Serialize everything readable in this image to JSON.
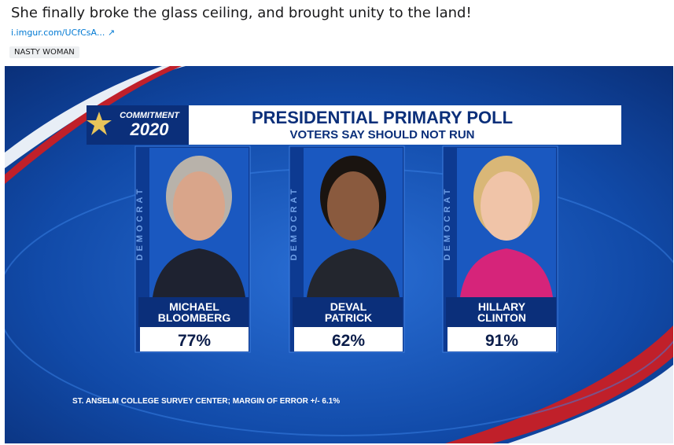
{
  "post": {
    "title": "She finally broke the glass ceiling, and brought unity to the land!",
    "link": "i.imgur.com/UCfCsA...",
    "flair": "NASTY WOMAN"
  },
  "graphic": {
    "brand_top": "COMMITMENT",
    "brand_year": "2020",
    "title": "PRESIDENTIAL PRIMARY POLL",
    "subtitle": "VOTERS SAY SHOULD NOT RUN",
    "candidates": [
      {
        "party": "DEMOCRAT",
        "name_lines": [
          "MICHAEL",
          "BLOOMBERG"
        ],
        "value": "77%"
      },
      {
        "party": "DEMOCRAT",
        "name_lines": [
          "DEVAL",
          "PATRICK"
        ],
        "value": "62%"
      },
      {
        "party": "DEMOCRAT",
        "name_lines": [
          "HILLARY",
          "CLINTON"
        ],
        "value": "91%"
      }
    ],
    "source": "ST. ANSELM COLLEGE SURVEY CENTER; MARGIN OF ERROR +/- 6.1%"
  }
}
